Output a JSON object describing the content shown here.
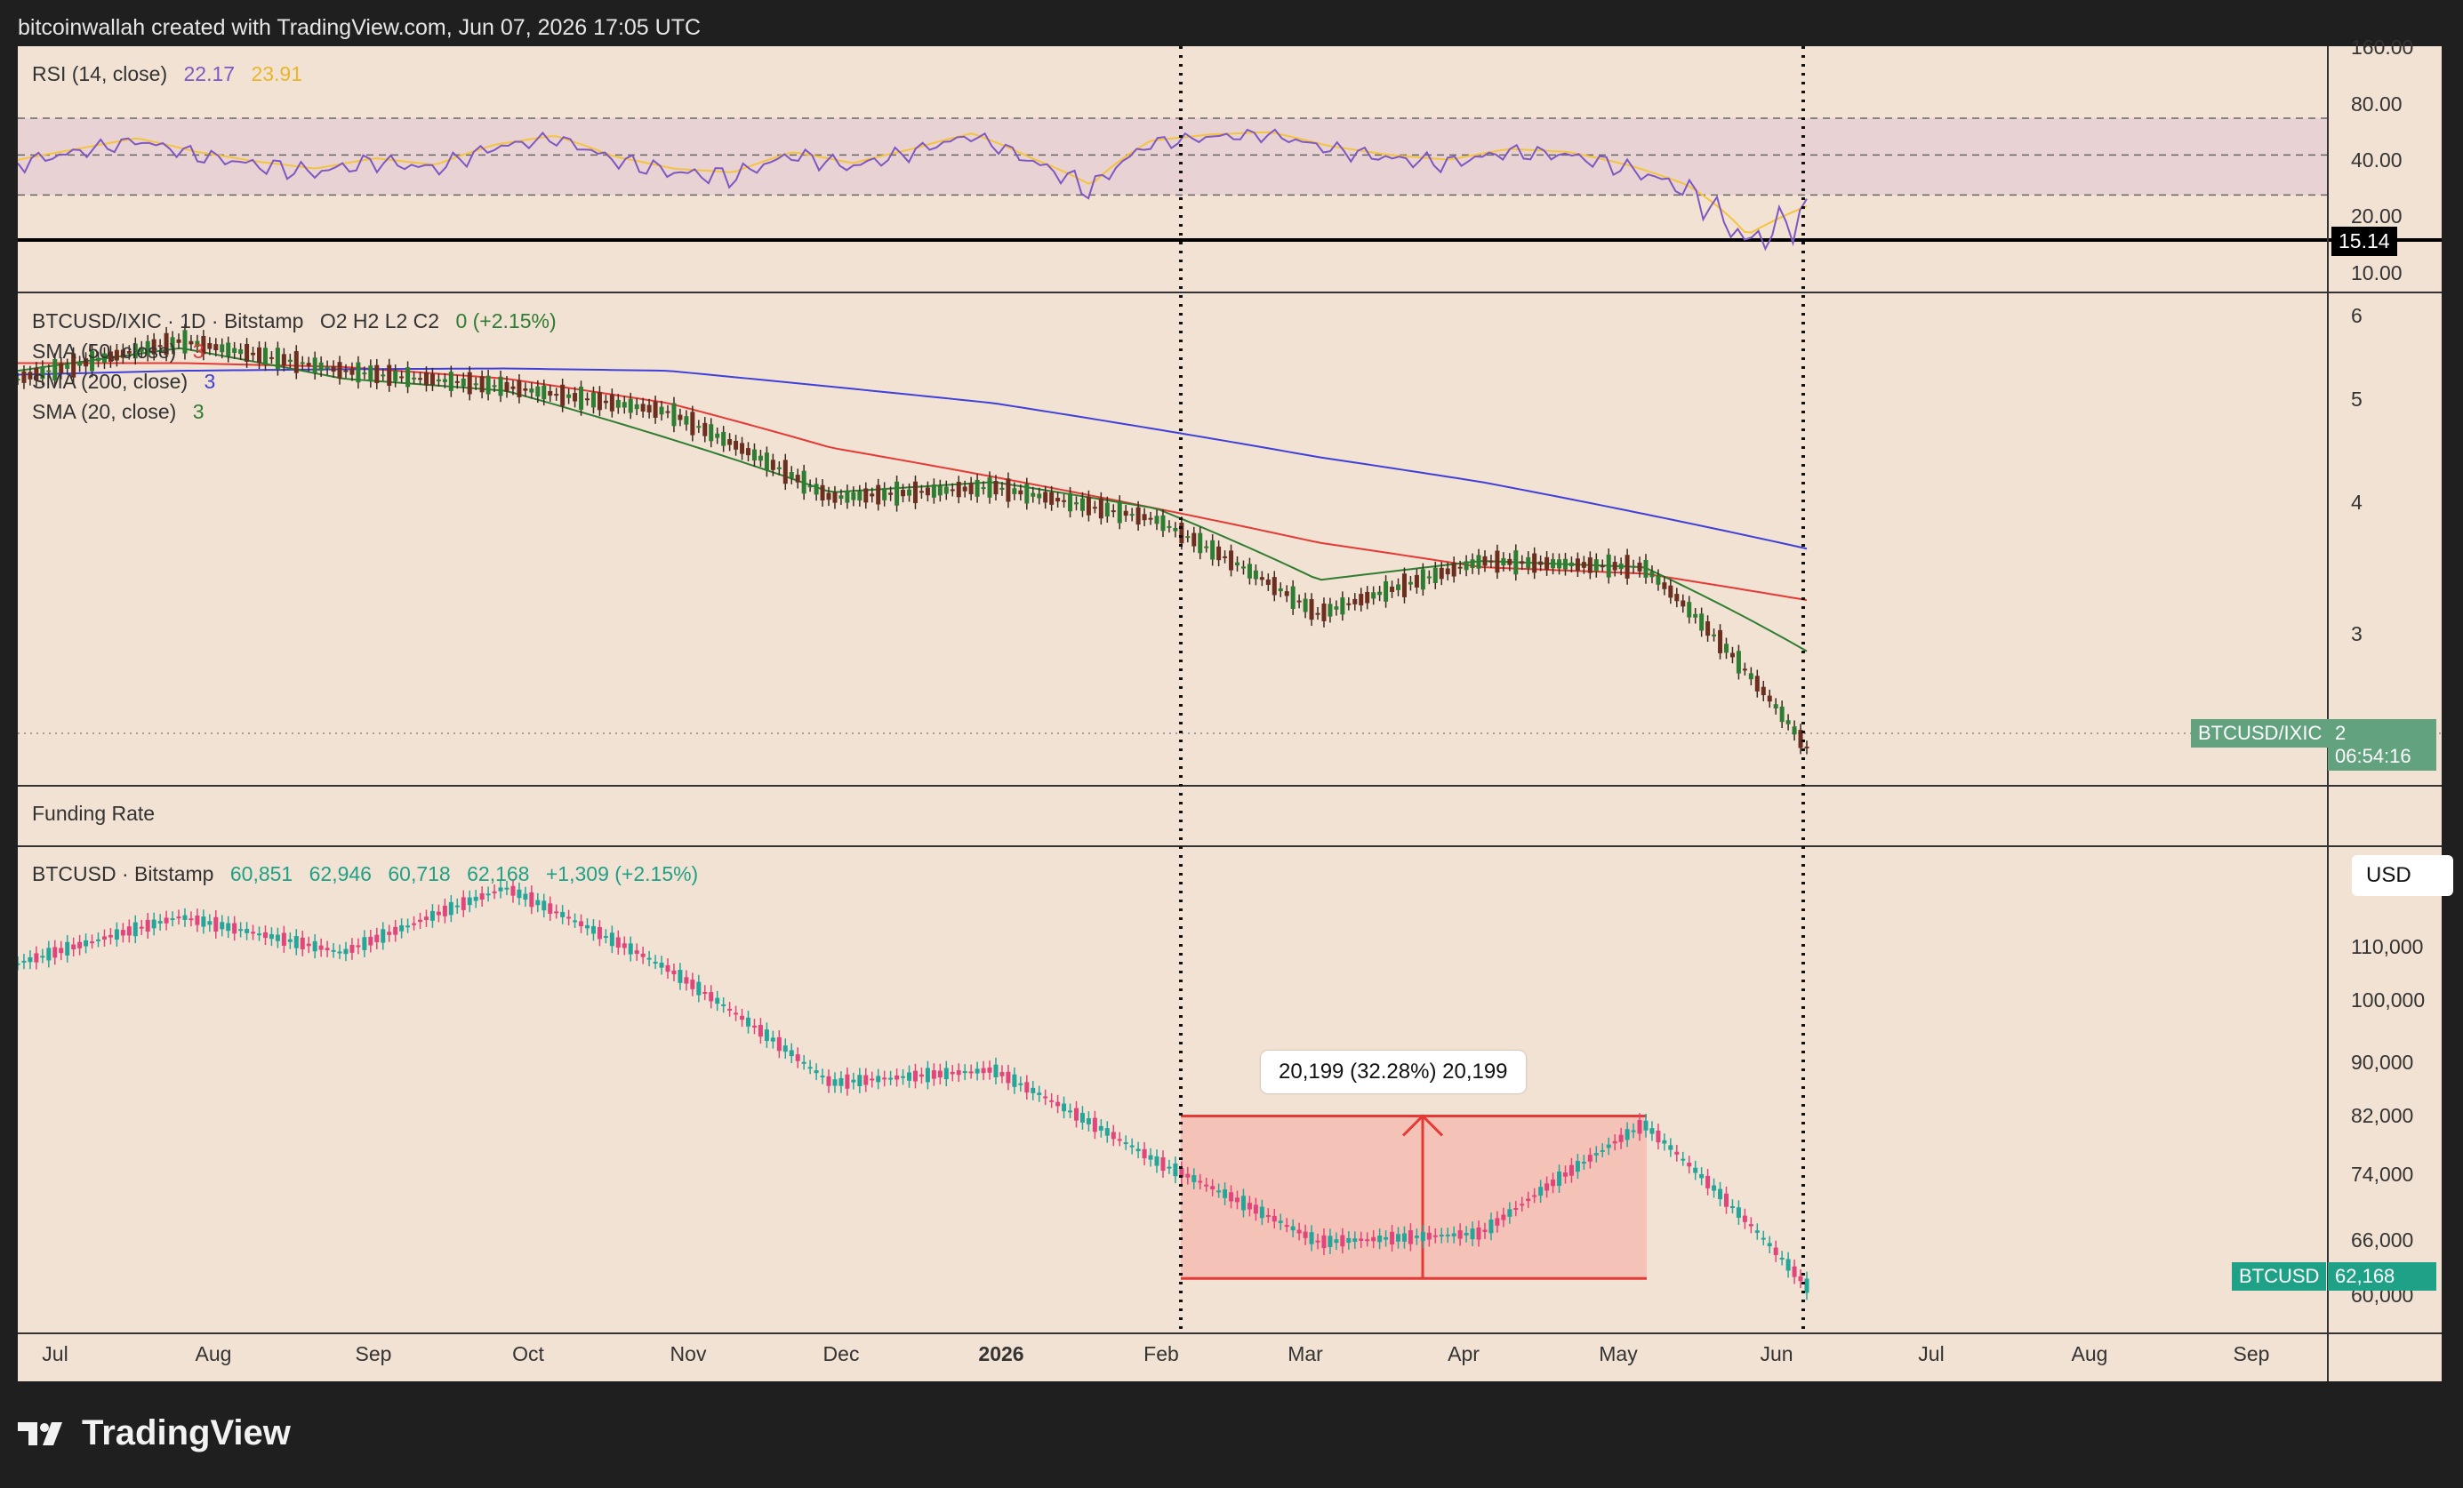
{
  "header": {
    "attribution": "bitcoinwallah created with TradingView.com, Jun 07, 2026 17:05 UTC"
  },
  "rsi_pane": {
    "title": "RSI (14, close)",
    "value1": "22.17",
    "value2": "23.91",
    "value1_color": "#7e57c2",
    "value2_color": "#f3c43d",
    "y_ticks": [
      "160.00",
      "80.00",
      "40.00",
      "20.00",
      "10.00"
    ],
    "marker_label": "15.14"
  },
  "ratio_pane": {
    "title": "BTCUSD/IXIC · 1D · Bitstamp",
    "ohlc": "O2  H2  L2  C2",
    "change": "0 (+2.15%)",
    "sma_50": {
      "label": "SMA (50, close)",
      "value": "3",
      "color": "#e53935"
    },
    "sma_200": {
      "label": "SMA (200, close)",
      "value": "3",
      "color": "#3f3fd9"
    },
    "sma_20": {
      "label": "SMA (20, close)",
      "value": "3",
      "color": "#2e7d32"
    },
    "y_ticks": [
      "6",
      "5",
      "4",
      "3"
    ],
    "price_badge": {
      "symbol": "BTCUSD/IXIC",
      "value": "2",
      "countdown": "06:54:16"
    }
  },
  "funding_pane": {
    "title": "Funding Rate"
  },
  "price_pane": {
    "title": "BTCUSD · Bitstamp",
    "open": "60,851",
    "high": "62,946",
    "low": "60,718",
    "close": "62,168",
    "change": "+1,309 (+2.15%)",
    "currency_button": "USD",
    "y_ticks": [
      "110,000",
      "100,000",
      "90,000",
      "82,000",
      "74,000",
      "66,000",
      "60,000"
    ],
    "price_badge": {
      "symbol": "BTCUSD",
      "value": "62,168"
    },
    "measure_label": "20,199 (32.28%) 20,199"
  },
  "x_axis": {
    "labels": [
      "Jul",
      "Aug",
      "Sep",
      "Oct",
      "Nov",
      "Dec",
      "2026",
      "Feb",
      "Mar",
      "Apr",
      "May",
      "Jun",
      "Jul",
      "Aug",
      "Sep"
    ]
  },
  "footer": {
    "logo_text": "TradingView"
  },
  "colors": {
    "background": "#f2e2d3",
    "up_candle": "#26a69a",
    "down_candle": "#e0457b",
    "ratio_up": "#2e7d32",
    "ratio_down": "#6b2e1f",
    "measure_box": "#f5b7ae"
  },
  "chart_data": [
    {
      "type": "line",
      "title": "RSI (14, close)",
      "series": [
        {
          "name": "RSI",
          "values": [
            45,
            52,
            60,
            50,
            44,
            40,
            46,
            42,
            55,
            62,
            47,
            40,
            38,
            50,
            43,
            52,
            64,
            46,
            32,
            58,
            63,
            65,
            54,
            48,
            45,
            52,
            50,
            42,
            32,
            16,
            24
          ]
        }
      ],
      "ylim": [
        10,
        160
      ],
      "log_scale": true
    },
    {
      "type": "line",
      "title": "BTCUSD/IXIC · 1D · Bitstamp",
      "x": [
        "Jul",
        "Aug",
        "Sep",
        "Oct",
        "Nov",
        "Dec",
        "2026",
        "Feb",
        "Mar",
        "Apr",
        "May",
        "Jun"
      ],
      "series": [
        {
          "name": "BTCUSD/IXIC",
          "values": [
            5.1,
            5.6,
            5.2,
            5.0,
            4.7,
            3.8,
            3.9,
            3.6,
            2.85,
            3.25,
            3.2,
            2.05
          ]
        },
        {
          "name": "SMA (50, close)",
          "values": [
            5.3,
            5.3,
            5.25,
            5.1,
            4.8,
            4.3,
            4.0,
            3.7,
            3.4,
            3.2,
            3.15,
            2.95
          ]
        },
        {
          "name": "SMA (200, close)",
          "values": [
            5.15,
            5.2,
            5.22,
            5.23,
            5.2,
            5.0,
            4.8,
            4.5,
            4.2,
            3.95,
            3.65,
            3.35
          ]
        },
        {
          "name": "SMA (20, close)",
          "values": [
            5.2,
            5.5,
            5.1,
            4.95,
            4.4,
            3.85,
            3.95,
            3.7,
            3.1,
            3.25,
            3.2,
            2.6
          ]
        }
      ],
      "ylim": [
        2,
        6
      ],
      "log_scale": true
    },
    {
      "type": "line",
      "title": "BTCUSD · Bitstamp",
      "x": [
        "Jul",
        "Aug",
        "Sep",
        "Oct",
        "Nov",
        "Dec",
        "2026",
        "Feb",
        "Mar",
        "Apr",
        "May",
        "Jun"
      ],
      "series": [
        {
          "name": "BTCUSD",
          "values": [
            108000,
            117000,
            110000,
            123000,
            107000,
            88000,
            90000,
            77000,
            67000,
            68000,
            82000,
            62168
          ]
        }
      ],
      "ylim": [
        58000,
        130000
      ],
      "log_scale": true,
      "annotations": [
        {
          "type": "range",
          "from": 62946,
          "to": 83145,
          "value": "20,199 (32.28%) 20,199"
        }
      ]
    }
  ]
}
